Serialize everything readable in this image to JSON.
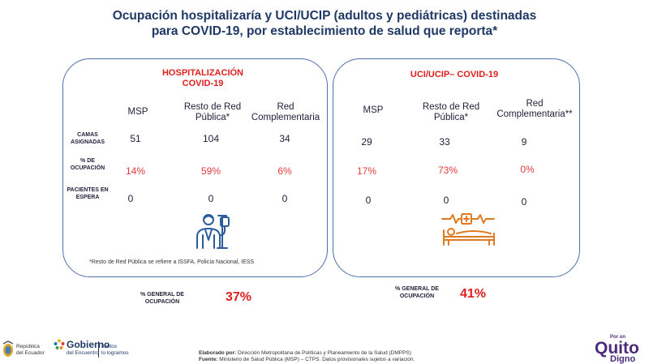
{
  "title_line1": "Ocupación hospitalizaría y UCI/UCIP (adultos y pediátricas) destinadas",
  "title_line2": "para COVID-19, por establecimiento de salud que reporta*",
  "hosp": {
    "title_line1": "HOSPITALIZACIÓN",
    "title_line2": "COVID-19",
    "col1": "MSP",
    "col2_line1": "Resto de Red",
    "col2_line2": "Pública*",
    "col3_line1": "Red",
    "col3_line2": "Complementaria",
    "row1_line1": "CAMAS",
    "row1_line2": "ASIGNADAS",
    "row2_line1": "% DE",
    "row2_line2": "OCUPACIÓN",
    "row3_line1": "PACIENTES EN",
    "row3_line2": "ESPERA",
    "camas": [
      "51",
      "104",
      "34"
    ],
    "ocupacion": [
      "14%",
      "59%",
      "6%"
    ],
    "espera": [
      "0",
      "0",
      "0"
    ],
    "footnote": "*Resto de Red Pública se refiere a ISSFA, Policía Nacional, IESS",
    "icon": "doctor-with-iv-icon"
  },
  "uci": {
    "title": "UCI/UCIP– COVID-19",
    "col1": "MSP",
    "col2_line1": "Resto de Red",
    "col2_line2": "Pública*",
    "col3_line1": "Red",
    "col3_line2": "Complementaria**",
    "camas": [
      "29",
      "33",
      "9"
    ],
    "ocupacion": [
      "17%",
      "73%",
      "0%"
    ],
    "espera": [
      "0",
      "0",
      "0"
    ],
    "icon": "icu-bed-monitor-icon"
  },
  "general_a": {
    "label_line1": "% GENERAL DE",
    "label_line2": "OCUPACIÓN",
    "value": "37%"
  },
  "general_b": {
    "label_line1": "% GENERAL DE",
    "label_line2": "OCUPACIÓN",
    "value": "41%"
  },
  "footer": {
    "elaborado_label": "Elaborado por:",
    "elaborado_text": "Dirección Metropolitana de Políticas y Planeamiento de la Salud (DMPPS)",
    "fuente_label": "Fuente:",
    "fuente_text": "Ministerio de Salud Pública (MSP) – CTPS. Datos provisionales sujetos a variación.",
    "rep_line1": "República",
    "rep_line2": "del Ecuador",
    "gob_line1": "Gobierno",
    "gob_line2": "del Encuentro",
    "gob_tag1": "Juntos",
    "gob_tag2": "lo logramos",
    "quito_small": "Por un",
    "quito_big": "Quito",
    "quito_sub": "Digno"
  },
  "colors": {
    "title": "#1f3864",
    "accent_red": "#e01e1e",
    "panel_border": "#4f6fa8",
    "icon_blue": "#2c5c9c",
    "icon_orange": "#e07a20"
  }
}
